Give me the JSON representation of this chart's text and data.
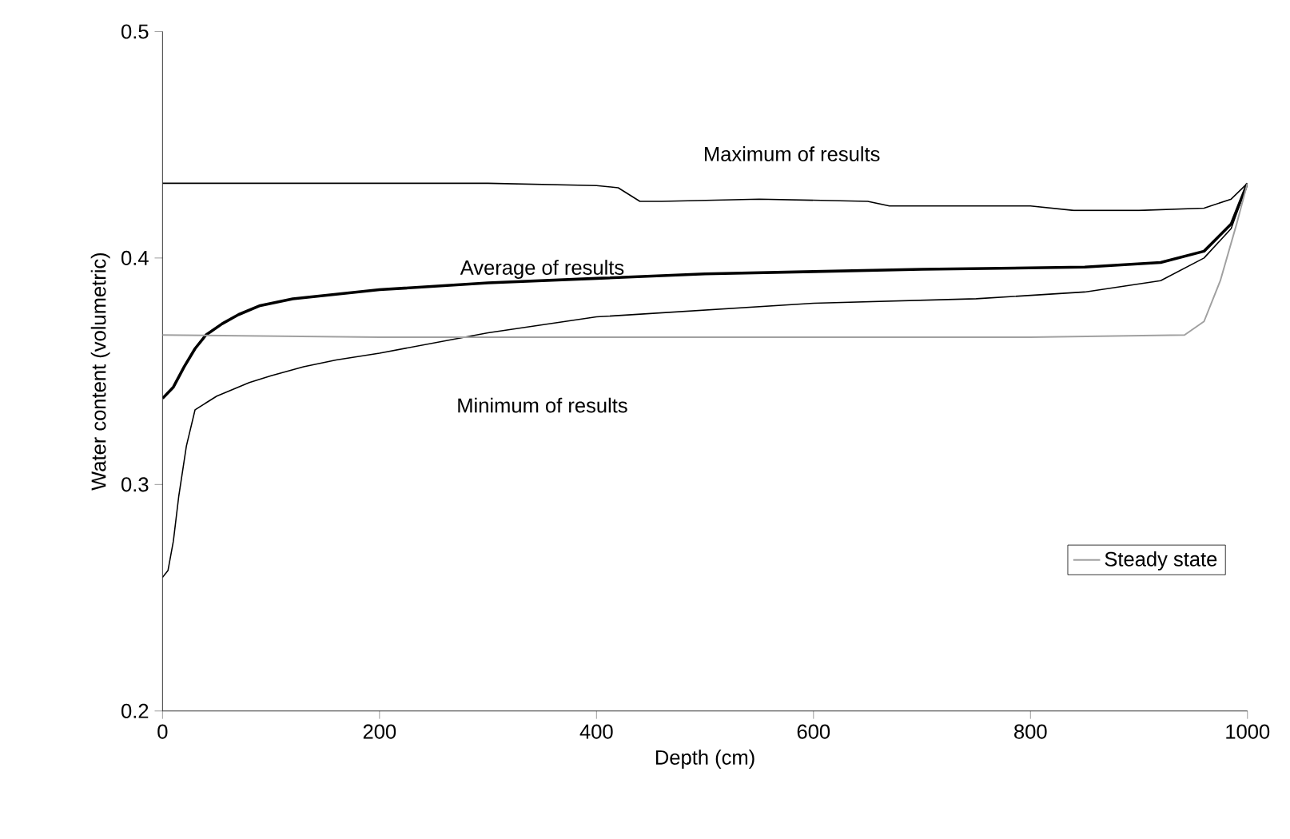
{
  "chart_data": {
    "type": "line",
    "xlabel": "Depth (cm)",
    "ylabel": "Water content (volumetric)",
    "xlim": [
      0,
      1000
    ],
    "ylim": [
      0.2,
      0.5
    ],
    "xticks": [
      0,
      200,
      400,
      600,
      800,
      1000
    ],
    "yticks": [
      {
        "value": 0.2,
        "label": "0.2"
      },
      {
        "value": 0.3,
        "label": "0.3"
      },
      {
        "value": 0.4,
        "label": "0.4"
      },
      {
        "value": 0.5,
        "label": "0.5"
      }
    ],
    "grid": false,
    "legend": "bottom right",
    "marker": "none",
    "line_style": "solid",
    "annotations": [
      "Maximum of results",
      "Average of results",
      "Minimum of results"
    ],
    "series": [
      {
        "color": "#000000",
        "x": [
          0,
          100,
          200,
          300,
          400,
          420,
          440,
          460,
          550,
          650,
          670,
          700,
          800,
          840,
          900,
          960,
          985,
          1000
        ],
        "values": [
          0.433,
          0.433,
          0.433,
          0.433,
          0.432,
          0.431,
          0.425,
          0.425,
          0.426,
          0.425,
          0.423,
          0.423,
          0.423,
          0.421,
          0.421,
          0.422,
          0.426,
          0.433
        ]
      },
      {
        "color": "#000000",
        "x": [
          0,
          10,
          20,
          30,
          40,
          55,
          70,
          90,
          120,
          160,
          200,
          300,
          400,
          500,
          600,
          700,
          850,
          920,
          960,
          985,
          1000
        ],
        "values": [
          0.338,
          0.343,
          0.352,
          0.36,
          0.366,
          0.371,
          0.375,
          0.379,
          0.382,
          0.384,
          0.386,
          0.389,
          0.391,
          0.393,
          0.394,
          0.395,
          0.396,
          0.398,
          0.403,
          0.415,
          0.433
        ]
      },
      {
        "color": "#000000",
        "x": [
          0,
          5,
          10,
          15,
          22,
          30,
          40,
          50,
          65,
          80,
          100,
          130,
          160,
          200,
          300,
          400,
          500,
          600,
          750,
          850,
          920,
          960,
          985,
          1000
        ],
        "values": [
          0.259,
          0.262,
          0.275,
          0.295,
          0.317,
          0.333,
          0.336,
          0.339,
          0.342,
          0.345,
          0.348,
          0.352,
          0.355,
          0.358,
          0.367,
          0.374,
          0.377,
          0.38,
          0.382,
          0.385,
          0.39,
          0.4,
          0.413,
          0.433
        ]
      },
      {
        "name": "Steady state",
        "color": "#a0a0a0",
        "x": [
          0,
          200,
          400,
          600,
          800,
          942,
          960,
          975,
          990,
          1000
        ],
        "values": [
          0.366,
          0.365,
          0.365,
          0.365,
          0.365,
          0.366,
          0.372,
          0.39,
          0.415,
          0.433
        ]
      }
    ]
  }
}
